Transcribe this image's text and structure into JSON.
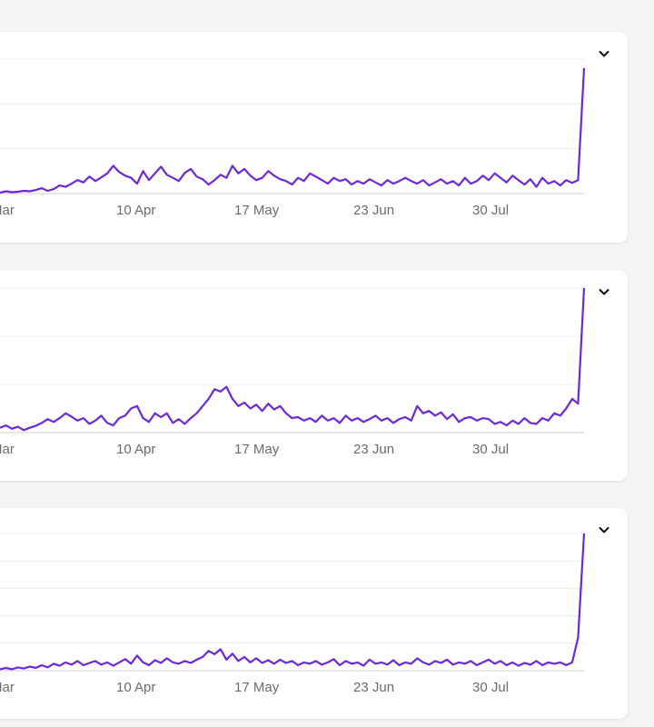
{
  "colors": {
    "line": "#6d28d9",
    "grid": "#ececec",
    "axis": "#cfcfcf",
    "text": "#6b6b6b",
    "chevron": "#111111"
  },
  "icons": {
    "collapse": "chevron-down-icon"
  },
  "chart_data": [
    {
      "type": "line",
      "title": "",
      "xlabel": "",
      "ylabel": "",
      "grid": true,
      "x_ticks": [
        "Mar",
        "10 Apr",
        "17 May",
        "23 Jun",
        "30 Jul"
      ],
      "ylim": [
        0,
        3
      ],
      "series": [
        {
          "values": [
            0.02,
            0.05,
            0.03,
            0.04,
            0.06,
            0.05,
            0.08,
            0.12,
            0.06,
            0.1,
            0.18,
            0.15,
            0.22,
            0.3,
            0.25,
            0.38,
            0.28,
            0.36,
            0.45,
            0.62,
            0.48,
            0.4,
            0.35,
            0.22,
            0.5,
            0.3,
            0.45,
            0.6,
            0.42,
            0.35,
            0.28,
            0.46,
            0.55,
            0.38,
            0.32,
            0.2,
            0.3,
            0.42,
            0.35,
            0.62,
            0.45,
            0.55,
            0.4,
            0.3,
            0.35,
            0.5,
            0.4,
            0.32,
            0.28,
            0.2,
            0.35,
            0.28,
            0.45,
            0.38,
            0.3,
            0.22,
            0.35,
            0.28,
            0.32,
            0.2,
            0.28,
            0.22,
            0.32,
            0.25,
            0.18,
            0.3,
            0.22,
            0.28,
            0.35,
            0.28,
            0.22,
            0.3,
            0.18,
            0.25,
            0.32,
            0.22,
            0.28,
            0.18,
            0.35,
            0.22,
            0.28,
            0.4,
            0.3,
            0.45,
            0.35,
            0.25,
            0.4,
            0.3,
            0.2,
            0.32,
            0.15,
            0.35,
            0.22,
            0.28,
            0.18,
            0.3,
            0.24,
            0.3,
            2.8
          ],
          "note": ""
        }
      ]
    },
    {
      "type": "line",
      "title": "",
      "xlabel": "",
      "ylabel": "",
      "grid": true,
      "x_ticks": [
        "Mar",
        "10 Apr",
        "17 May",
        "23 Jun",
        "30 Jul"
      ],
      "ylim": [
        0,
        3
      ],
      "series": [
        {
          "values": [
            0.1,
            0.15,
            0.08,
            0.12,
            0.05,
            0.1,
            0.14,
            0.2,
            0.28,
            0.22,
            0.3,
            0.4,
            0.33,
            0.25,
            0.3,
            0.18,
            0.25,
            0.35,
            0.2,
            0.15,
            0.3,
            0.35,
            0.5,
            0.55,
            0.3,
            0.22,
            0.4,
            0.32,
            0.4,
            0.2,
            0.28,
            0.18,
            0.3,
            0.4,
            0.55,
            0.7,
            0.9,
            0.85,
            0.95,
            0.7,
            0.55,
            0.62,
            0.5,
            0.58,
            0.45,
            0.6,
            0.48,
            0.55,
            0.4,
            0.3,
            0.32,
            0.25,
            0.3,
            0.22,
            0.35,
            0.25,
            0.3,
            0.2,
            0.35,
            0.25,
            0.3,
            0.22,
            0.28,
            0.35,
            0.25,
            0.3,
            0.2,
            0.28,
            0.32,
            0.25,
            0.55,
            0.4,
            0.45,
            0.35,
            0.42,
            0.28,
            0.38,
            0.22,
            0.3,
            0.32,
            0.25,
            0.3,
            0.28,
            0.18,
            0.22,
            0.15,
            0.25,
            0.18,
            0.3,
            0.2,
            0.18,
            0.3,
            0.25,
            0.4,
            0.35,
            0.5,
            0.7,
            0.6,
            3.0
          ],
          "note": ""
        }
      ]
    },
    {
      "type": "line",
      "title": "",
      "xlabel": "",
      "ylabel": "",
      "grid": true,
      "x_ticks": [
        "Mar",
        "10 Apr",
        "17 May",
        "23 Jun",
        "30 Jul"
      ],
      "ylim": [
        0,
        5
      ],
      "series": [
        {
          "values": [
            0.05,
            0.1,
            0.05,
            0.12,
            0.08,
            0.15,
            0.1,
            0.2,
            0.12,
            0.25,
            0.18,
            0.3,
            0.22,
            0.35,
            0.2,
            0.28,
            0.35,
            0.22,
            0.3,
            0.18,
            0.3,
            0.42,
            0.25,
            0.55,
            0.3,
            0.2,
            0.38,
            0.28,
            0.45,
            0.3,
            0.25,
            0.35,
            0.28,
            0.4,
            0.5,
            0.72,
            0.6,
            0.78,
            0.4,
            0.62,
            0.35,
            0.5,
            0.3,
            0.45,
            0.28,
            0.38,
            0.25,
            0.4,
            0.28,
            0.35,
            0.2,
            0.3,
            0.25,
            0.35,
            0.22,
            0.3,
            0.42,
            0.2,
            0.35,
            0.25,
            0.3,
            0.18,
            0.4,
            0.25,
            0.3,
            0.22,
            0.38,
            0.2,
            0.3,
            0.25,
            0.45,
            0.3,
            0.22,
            0.35,
            0.28,
            0.4,
            0.22,
            0.3,
            0.25,
            0.35,
            0.2,
            0.3,
            0.4,
            0.25,
            0.35,
            0.2,
            0.3,
            0.18,
            0.28,
            0.22,
            0.35,
            0.2,
            0.3,
            0.25,
            0.3,
            0.2,
            0.3,
            1.2,
            5.0
          ],
          "note": ""
        }
      ]
    }
  ]
}
